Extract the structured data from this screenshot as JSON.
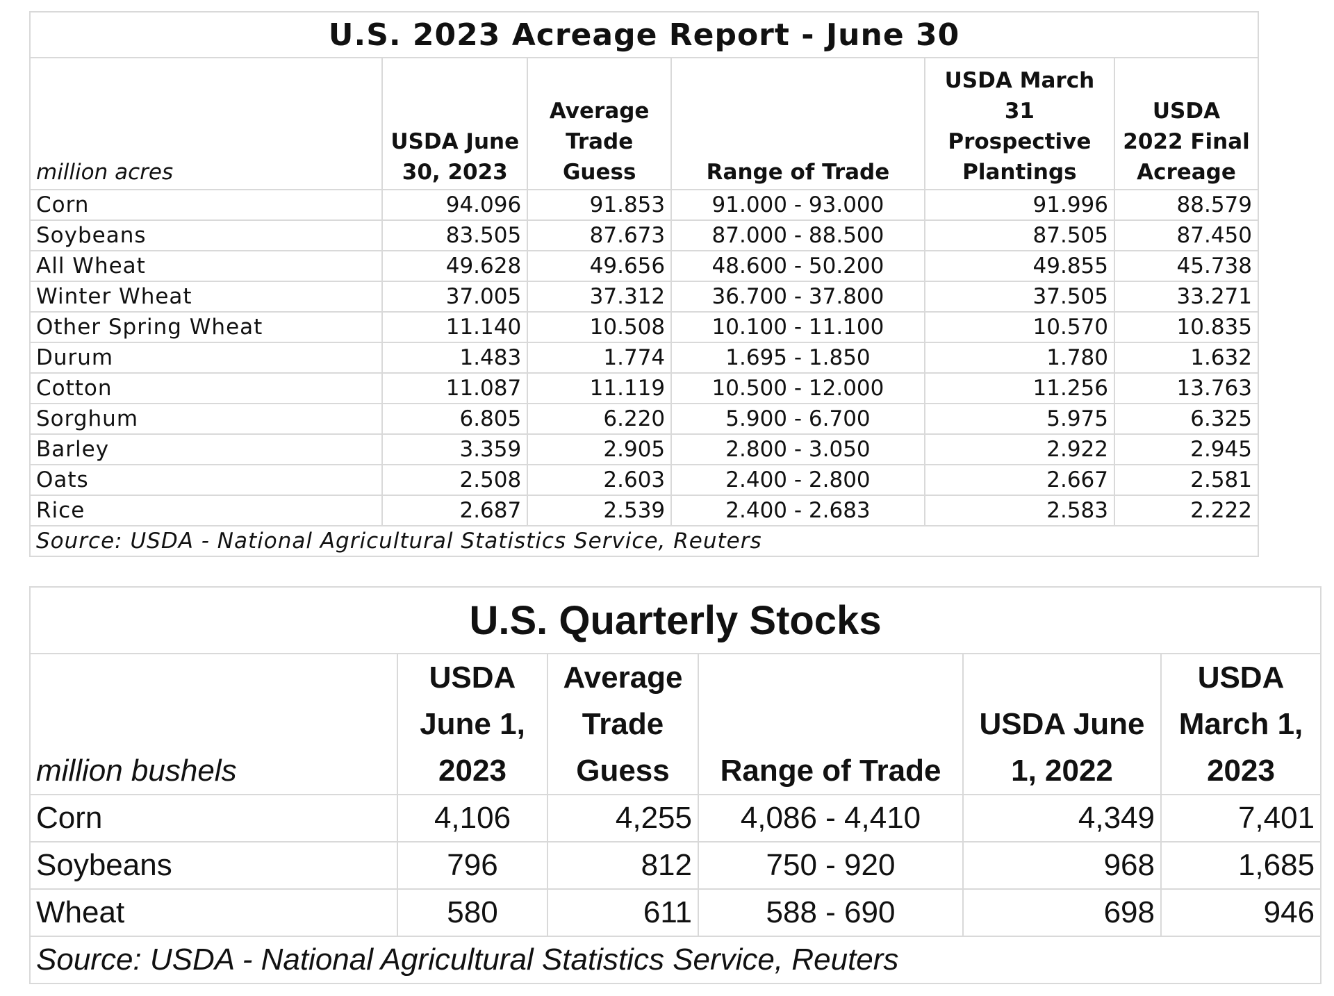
{
  "acreage": {
    "title": "U.S. 2023 Acreage Report - June 30",
    "unit_label": "million acres",
    "columns": [
      "USDA June 30, 2023",
      "Average Trade Guess",
      "Range of Trade",
      "USDA March 31 Prospective Plantings",
      "USDA 2022 Final Acreage"
    ],
    "rows": [
      {
        "label": "Corn",
        "usda": "94.096",
        "avg": "91.853",
        "range": "91.000 - 93.000",
        "march": "91.996",
        "final2022": "88.579"
      },
      {
        "label": "Soybeans",
        "usda": "83.505",
        "avg": "87.673",
        "range": "87.000 - 88.500",
        "march": "87.505",
        "final2022": "87.450"
      },
      {
        "label": "All Wheat",
        "usda": "49.628",
        "avg": "49.656",
        "range": "48.600 - 50.200",
        "march": "49.855",
        "final2022": "45.738"
      },
      {
        "label": "Winter Wheat",
        "usda": "37.005",
        "avg": "37.312",
        "range": "36.700 - 37.800",
        "march": "37.505",
        "final2022": "33.271"
      },
      {
        "label": "Other Spring Wheat",
        "usda": "11.140",
        "avg": "10.508",
        "range": "10.100 - 11.100",
        "march": "10.570",
        "final2022": "10.835"
      },
      {
        "label": "Durum",
        "usda": "1.483",
        "avg": "1.774",
        "range": "1.695 - 1.850",
        "march": "1.780",
        "final2022": "1.632"
      },
      {
        "label": "Cotton",
        "usda": "11.087",
        "avg": "11.119",
        "range": "10.500 - 12.000",
        "march": "11.256",
        "final2022": "13.763"
      },
      {
        "label": "Sorghum",
        "usda": "6.805",
        "avg": "6.220",
        "range": "5.900 - 6.700",
        "march": "5.975",
        "final2022": "6.325"
      },
      {
        "label": "Barley",
        "usda": "3.359",
        "avg": "2.905",
        "range": "2.800 - 3.050",
        "march": "2.922",
        "final2022": "2.945"
      },
      {
        "label": "Oats",
        "usda": "2.508",
        "avg": "2.603",
        "range": "2.400 - 2.800",
        "march": "2.667",
        "final2022": "2.581"
      },
      {
        "label": "Rice",
        "usda": "2.687",
        "avg": "2.539",
        "range": "2.400 - 2.683",
        "march": "2.583",
        "final2022": "2.222"
      }
    ],
    "source": "Source: USDA - National Agricultural Statistics Service, Reuters"
  },
  "stocks": {
    "title": "U.S. Quarterly Stocks",
    "unit_label": "million bushels",
    "columns": [
      "USDA June 1, 2023",
      "Average Trade Guess",
      "Range of Trade",
      "USDA June 1, 2022",
      "USDA March 1, 2023"
    ],
    "rows": [
      {
        "label": "Corn",
        "usda": "4,106",
        "avg": "4,255",
        "range": "4,086 - 4,410",
        "june2022": "4,349",
        "march2023": "7,401"
      },
      {
        "label": "Soybeans",
        "usda": "796",
        "avg": "812",
        "range": "750 - 920",
        "june2022": "968",
        "march2023": "1,685"
      },
      {
        "label": "Wheat",
        "usda": "580",
        "avg": "611",
        "range": "588 - 690",
        "june2022": "698",
        "march2023": "946"
      }
    ],
    "source": "Source: USDA - National Agricultural Statistics Service, Reuters"
  },
  "chart_data": [
    {
      "type": "table",
      "title": "U.S. 2023 Acreage Report - June 30",
      "unit": "million acres",
      "columns": [
        "USDA June 30, 2023",
        "Average Trade Guess",
        "Range of Trade",
        "USDA March 31 Prospective Plantings",
        "USDA 2022 Final Acreage"
      ],
      "categories": [
        "Corn",
        "Soybeans",
        "All Wheat",
        "Winter Wheat",
        "Other Spring Wheat",
        "Durum",
        "Cotton",
        "Sorghum",
        "Barley",
        "Oats",
        "Rice"
      ],
      "series": [
        {
          "name": "USDA June 30, 2023",
          "values": [
            94.096,
            83.505,
            49.628,
            37.005,
            11.14,
            1.483,
            11.087,
            6.805,
            3.359,
            2.508,
            2.687
          ]
        },
        {
          "name": "Average Trade Guess",
          "values": [
            91.853,
            87.673,
            49.656,
            37.312,
            10.508,
            1.774,
            11.119,
            6.22,
            2.905,
            2.603,
            2.539
          ]
        },
        {
          "name": "Range of Trade",
          "values": [
            [
              91.0,
              93.0
            ],
            [
              87.0,
              88.5
            ],
            [
              48.6,
              50.2
            ],
            [
              36.7,
              37.8
            ],
            [
              10.1,
              11.1
            ],
            [
              1.695,
              1.85
            ],
            [
              10.5,
              12.0
            ],
            [
              5.9,
              6.7
            ],
            [
              2.8,
              3.05
            ],
            [
              2.4,
              2.8
            ],
            [
              2.4,
              2.683
            ]
          ]
        },
        {
          "name": "USDA March 31 Prospective Plantings",
          "values": [
            91.996,
            87.505,
            49.855,
            37.505,
            10.57,
            1.78,
            11.256,
            5.975,
            2.922,
            2.667,
            2.583
          ]
        },
        {
          "name": "USDA 2022 Final Acreage",
          "values": [
            88.579,
            87.45,
            45.738,
            33.271,
            10.835,
            1.632,
            13.763,
            6.325,
            2.945,
            2.581,
            2.222
          ]
        }
      ]
    },
    {
      "type": "table",
      "title": "U.S. Quarterly Stocks",
      "unit": "million bushels",
      "columns": [
        "USDA June 1, 2023",
        "Average Trade Guess",
        "Range of Trade",
        "USDA June 1, 2022",
        "USDA March 1, 2023"
      ],
      "categories": [
        "Corn",
        "Soybeans",
        "Wheat"
      ],
      "series": [
        {
          "name": "USDA June 1, 2023",
          "values": [
            4106,
            796,
            580
          ]
        },
        {
          "name": "Average Trade Guess",
          "values": [
            4255,
            812,
            611
          ]
        },
        {
          "name": "Range of Trade",
          "values": [
            [
              4086,
              4410
            ],
            [
              750,
              920
            ],
            [
              588,
              690
            ]
          ]
        },
        {
          "name": "USDA June 1, 2022",
          "values": [
            4349,
            968,
            698
          ]
        },
        {
          "name": "USDA March 1, 2023",
          "values": [
            7401,
            1685,
            946
          ]
        }
      ]
    }
  ]
}
